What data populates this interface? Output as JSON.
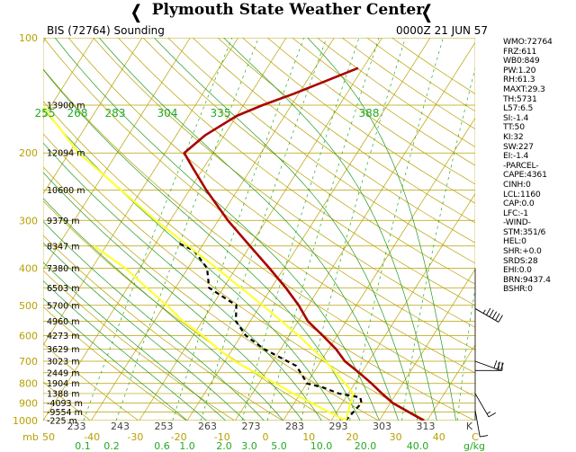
{
  "header": {
    "title": "Plymouth State Weather Center",
    "station": "BIS (72764) Sounding",
    "datetime": "0000Z 21 JUN 57"
  },
  "chart_data": {
    "type": "line",
    "subtype": "skew-T log-P sounding",
    "title": "BIS (72764) Sounding",
    "y_axis": {
      "label": "mb",
      "scale": "log",
      "range": [
        1000,
        100
      ],
      "ticks": [
        100,
        200,
        300,
        400,
        500,
        600,
        700,
        800,
        900,
        1000
      ]
    },
    "x_axis": {
      "label": "C",
      "range": [
        -50,
        40
      ],
      "ticks": [
        -50,
        -40,
        -30,
        -20,
        -10,
        0,
        10,
        20,
        30,
        40
      ]
    },
    "height_labels": [
      {
        "p": 150,
        "text": "13900 m"
      },
      {
        "p": 200,
        "text": "12094 m"
      },
      {
        "p": 250,
        "text": "10600 m"
      },
      {
        "p": 300,
        "text": "9379 m"
      },
      {
        "p": 350,
        "text": "8347 m"
      },
      {
        "p": 400,
        "text": "7380 m"
      },
      {
        "p": 450,
        "text": "6503 m"
      },
      {
        "p": 500,
        "text": "5700 m"
      },
      {
        "p": 550,
        "text": "4960 m"
      },
      {
        "p": 600,
        "text": "4273 m"
      },
      {
        "p": 650,
        "text": "3629 m"
      },
      {
        "p": 700,
        "text": "3023 m"
      },
      {
        "p": 750,
        "text": "2449 m"
      },
      {
        "p": 800,
        "text": "1904 m"
      },
      {
        "p": 850,
        "text": "1388 m"
      },
      {
        "p": 900,
        "text": "-4093 m"
      },
      {
        "p": 950,
        "text": "-9554 m"
      },
      {
        "p": 1000,
        "text": "-225 m"
      }
    ],
    "theta_labels": [
      "233",
      "243",
      "253",
      "263",
      "273",
      "283",
      "293",
      "303",
      "313",
      "K"
    ],
    "thetae_labels": [
      "255",
      "268",
      "283",
      "304",
      "335",
      "388"
    ],
    "mixing_ratio_labels": [
      "0.1",
      "0.2",
      "0.6",
      "1.0",
      "2.0",
      "3.0",
      "5.0",
      "10.0",
      "20.0",
      "40.0",
      "g/kg"
    ],
    "series": [
      {
        "name": "temperature",
        "color": "#aa0000",
        "points": [
          {
            "p": 1000,
            "t": 29.3
          },
          {
            "p": 950,
            "t": 25
          },
          {
            "p": 900,
            "t": 20.5
          },
          {
            "p": 850,
            "t": 17
          },
          {
            "p": 800,
            "t": 13.5
          },
          {
            "p": 750,
            "t": 9.5
          },
          {
            "p": 700,
            "t": 5
          },
          {
            "p": 650,
            "t": 1.5
          },
          {
            "p": 600,
            "t": -3
          },
          {
            "p": 550,
            "t": -8
          },
          {
            "p": 500,
            "t": -12
          },
          {
            "p": 450,
            "t": -17
          },
          {
            "p": 400,
            "t": -23
          },
          {
            "p": 350,
            "t": -30
          },
          {
            "p": 300,
            "t": -38
          },
          {
            "p": 250,
            "t": -46.5
          },
          {
            "p": 220,
            "t": -52
          },
          {
            "p": 200,
            "t": -56
          },
          {
            "p": 180,
            "t": -54
          },
          {
            "p": 160,
            "t": -50
          },
          {
            "p": 150,
            "t": -46
          },
          {
            "p": 140,
            "t": -41
          },
          {
            "p": 120,
            "t": -31
          }
        ]
      },
      {
        "name": "dewpoint",
        "color": "#000000",
        "points": [
          {
            "p": 1000,
            "t": 13
          },
          {
            "p": 950,
            "t": 13.5
          },
          {
            "p": 900,
            "t": 14
          },
          {
            "p": 870,
            "t": 13
          },
          {
            "p": 850,
            "t": 8
          },
          {
            "p": 820,
            "t": 4
          },
          {
            "p": 800,
            "t": 0
          },
          {
            "p": 780,
            "t": -1
          },
          {
            "p": 720,
            "t": -4.5
          },
          {
            "p": 650,
            "t": -13.5
          },
          {
            "p": 600,
            "t": -19
          },
          {
            "p": 550,
            "t": -23
          },
          {
            "p": 500,
            "t": -25
          },
          {
            "p": 450,
            "t": -33
          },
          {
            "p": 400,
            "t": -36
          },
          {
            "p": 360,
            "t": -41
          },
          {
            "p": 345,
            "t": -45
          }
        ]
      },
      {
        "name": "parcel",
        "color": "#ffff33",
        "points": [
          {
            "p": 1000,
            "t": 13
          },
          {
            "p": 850,
            "t": -1.5
          },
          {
            "p": 800,
            "t": -6.5
          },
          {
            "p": 700,
            "t": -18
          },
          {
            "p": 650,
            "t": -23
          },
          {
            "p": 600,
            "t": -28
          },
          {
            "p": 550,
            "t": -34
          },
          {
            "p": 500,
            "t": -39.5
          },
          {
            "p": 450,
            "t": -46
          },
          {
            "p": 400,
            "t": -53
          },
          {
            "p": 350,
            "t": -62.5
          },
          {
            "p": 1000,
            "t": 13
          },
          {
            "p": 850,
            "t": 11
          },
          {
            "p": 800,
            "t": 8
          },
          {
            "p": 700,
            "t": 1
          },
          {
            "p": 600,
            "t": -8
          },
          {
            "p": 500,
            "t": -19.5
          },
          {
            "p": 400,
            "t": -34
          },
          {
            "p": 300,
            "t": -53
          },
          {
            "p": 200,
            "t": -78
          },
          {
            "p": 150,
            "t": -92
          },
          {
            "p": 125,
            "t": -100
          }
        ]
      }
    ],
    "wind_barbs": [
      {
        "p": 510,
        "dir": 300,
        "spd": 55
      },
      {
        "p": 700,
        "dir": 290,
        "spd": 30
      },
      {
        "p": 740,
        "dir": 270,
        "spd": 20
      },
      {
        "p": 850,
        "dir": 330,
        "spd": 15
      },
      {
        "p": 940,
        "dir": 350,
        "spd": 10
      }
    ]
  },
  "indices": [
    "WMO:72764",
    "FRZ:611",
    "WB0:849",
    "PW:1.20",
    "RH:61.3",
    "MAXT:29.3",
    "TH:5731",
    "L57:6.5",
    "SI:-1.4",
    "TT:50",
    "KI:32",
    "SW:227",
    "EI:-1.4",
    "-PARCEL-",
    "CAPE:4361",
    "CINH:0",
    "LCL:1160",
    "CAP:0.0",
    "LFC:-1",
    "-WIND-",
    "STM:351/6",
    "HEL:0",
    "SHR:+0.0",
    "SRDS:28",
    "EHI:0.0",
    "BRN:9437.4",
    "BSHR:0"
  ]
}
